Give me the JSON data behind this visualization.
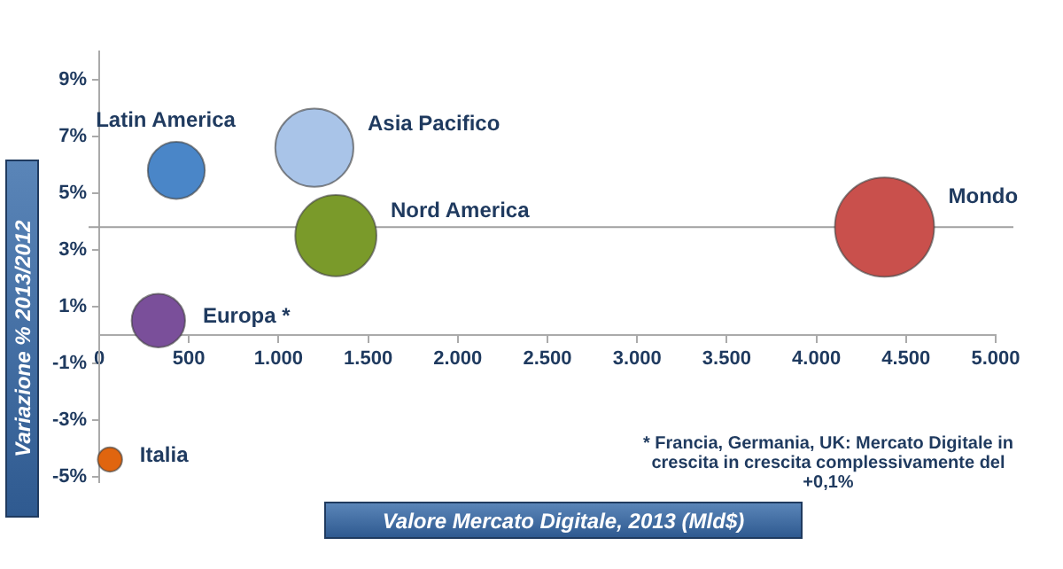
{
  "chart_data": {
    "type": "bubble",
    "xlabel": "Valore Mercato Digitale, 2013 (Mld$)",
    "ylabel": "Variazione % 2013/2012",
    "xlim": [
      0,
      5000
    ],
    "xticks": [
      0,
      {
        "value": 500,
        "label": "500"
      },
      {
        "value": 1000,
        "label": "1.000"
      },
      {
        "value": 1500,
        "label": "1.500"
      },
      {
        "value": 2000,
        "label": "2.000"
      },
      {
        "value": 2500,
        "label": "2.500"
      },
      {
        "value": 3000,
        "label": "3.000"
      },
      {
        "value": 3500,
        "label": "3.500"
      },
      {
        "value": 4000,
        "label": "4.000"
      },
      {
        "value": 4500,
        "label": "4.500"
      },
      {
        "value": 5000,
        "label": "5.000"
      }
    ],
    "ylim": [
      -5.2,
      10
    ],
    "yticks": [
      {
        "value": -5,
        "label": "-5%"
      },
      {
        "value": -3,
        "label": "-3%"
      },
      {
        "value": -1,
        "label": "-1%"
      },
      {
        "value": 1,
        "label": "1%"
      },
      {
        "value": 3,
        "label": "3%"
      },
      {
        "value": 5,
        "label": "5%"
      },
      {
        "value": 7,
        "label": "7%"
      },
      {
        "value": 9,
        "label": "9%"
      }
    ],
    "grid": false,
    "legend": false,
    "series": [
      {
        "name": "Latin America",
        "color": "#4a86c8",
        "x": [
          430
        ],
        "values": [
          5.8
        ],
        "sizes": [
          0.33
        ]
      },
      {
        "name": "Asia Pacifico",
        "color": "#a9c4e8",
        "x": [
          1200
        ],
        "values": [
          6.6
        ],
        "sizes": [
          0.62
        ]
      },
      {
        "name": "Nord America",
        "color": "#7a9a2a",
        "x": [
          1320
        ],
        "values": [
          3.5
        ],
        "sizes": [
          0.67
        ]
      },
      {
        "name": "Europa *",
        "color": "#7a4f9a",
        "x": [
          330
        ],
        "values": [
          0.5
        ],
        "sizes": [
          0.29
        ]
      },
      {
        "name": "Mondo",
        "color": "#c9504c",
        "x": [
          4380
        ],
        "values": [
          3.8
        ],
        "sizes": [
          1
        ]
      },
      {
        "name": "Italia",
        "color": "#e0650f",
        "x": [
          60
        ],
        "values": [
          -4.4
        ],
        "sizes": [
          0.06
        ]
      }
    ],
    "ref_lines": [
      {
        "axis": "y",
        "value": 3.8,
        "color": "#a0a0a0"
      }
    ],
    "annotations": [
      "* Francia, Germania, UK: Mercato Digitale in crescita in crescita complessivamente del +0,1%"
    ]
  }
}
